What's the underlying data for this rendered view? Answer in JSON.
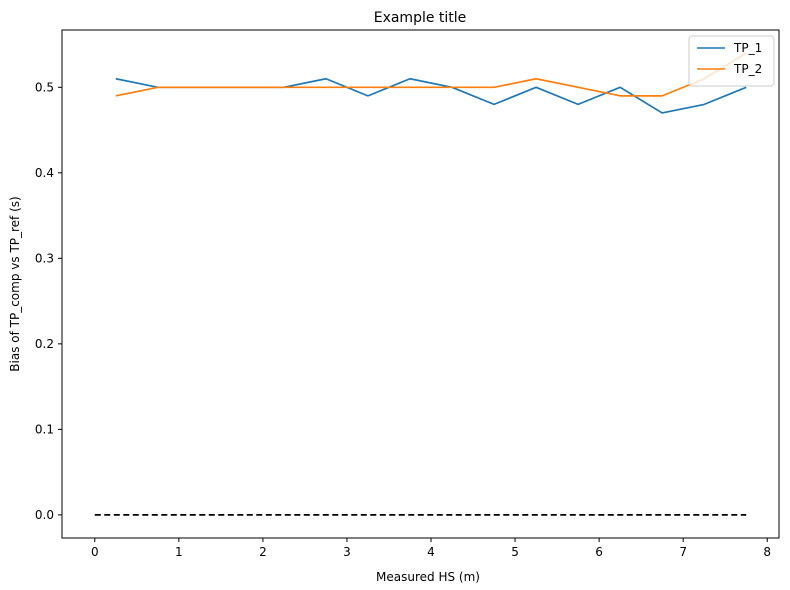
{
  "chart_data": {
    "type": "line",
    "title": "Example title",
    "xlabel": "Measured HS (m)",
    "ylabel": "Bias of TP_comp vs TP_ref (s)",
    "xlim": [
      -0.39,
      8.14
    ],
    "ylim": [
      -0.027,
      0.567
    ],
    "xticks": [
      0,
      1,
      2,
      3,
      4,
      5,
      6,
      7,
      8
    ],
    "yticks": [
      0.0,
      0.1,
      0.2,
      0.3,
      0.4,
      0.5
    ],
    "xtick_labels": [
      "0",
      "1",
      "2",
      "3",
      "4",
      "5",
      "6",
      "7",
      "8"
    ],
    "ytick_labels": [
      "0.0",
      "0.1",
      "0.2",
      "0.3",
      "0.4",
      "0.5"
    ],
    "grid": false,
    "legend_position": "top-right",
    "x": [
      0.25,
      0.75,
      1.25,
      1.75,
      2.25,
      2.75,
      3.25,
      3.75,
      4.25,
      4.75,
      5.25,
      5.75,
      6.25,
      6.75,
      7.25,
      7.75
    ],
    "series": [
      {
        "name": "TP_1",
        "color": "#1f77b4",
        "values": [
          0.51,
          0.5,
          0.5,
          0.5,
          0.5,
          0.51,
          0.49,
          0.51,
          0.5,
          0.48,
          0.5,
          0.48,
          0.5,
          0.47,
          0.48,
          0.5
        ]
      },
      {
        "name": "TP_2",
        "color": "#ff7f0e",
        "values": [
          0.49,
          0.5,
          0.5,
          0.5,
          0.5,
          0.5,
          0.5,
          0.5,
          0.5,
          0.5,
          0.51,
          0.5,
          0.49,
          0.49,
          0.51,
          0.54
        ]
      }
    ],
    "reference_line": {
      "x": [
        0,
        7.75
      ],
      "y": [
        0,
        0
      ],
      "color": "#000000",
      "style": "dashed"
    }
  }
}
